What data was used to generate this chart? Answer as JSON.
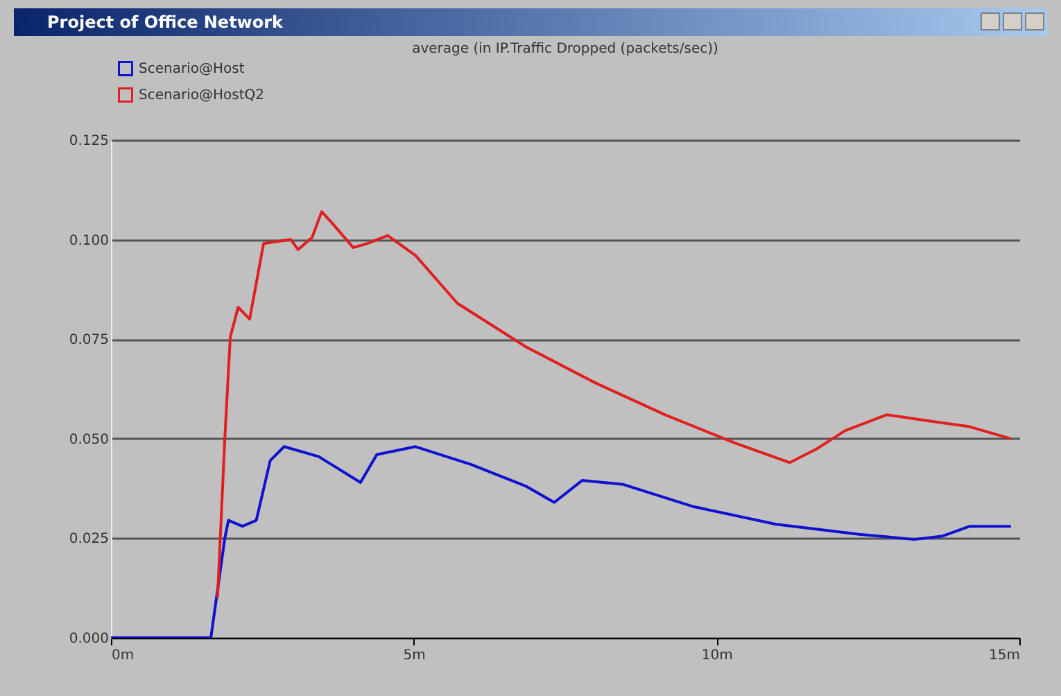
{
  "chart_data": {
    "type": "line",
    "title": "Project of Office Network",
    "subtitle": "average (in IP.Traffic Dropped (packets/sec))",
    "series": [
      {
        "name": "Scenario@Host",
        "color": "#1010d0",
        "x": [
          0,
          1.65,
          1.88,
          1.94,
          2.17,
          2.4,
          2.63,
          2.86,
          3.43,
          4.12,
          4.39,
          5.03,
          5.95,
          6.86,
          7.32,
          7.78,
          8.46,
          9.6,
          10.98,
          12.35,
          13.26,
          13.72,
          14.18,
          14.86
        ],
        "values": [
          0,
          0,
          0.025,
          0.0295,
          0.028,
          0.0295,
          0.0445,
          0.048,
          0.0455,
          0.039,
          0.046,
          0.048,
          0.0435,
          0.038,
          0.034,
          0.0395,
          0.0385,
          0.033,
          0.0285,
          0.026,
          0.0247,
          0.0255,
          0.028,
          0.028
        ]
      },
      {
        "name": "Scenario@HostQ2",
        "color": "#e02020",
        "x": [
          1.76,
          1.88,
          1.97,
          2.1,
          2.29,
          2.52,
          2.97,
          3.09,
          3.32,
          3.48,
          3.66,
          4.0,
          4.23,
          4.57,
          5.03,
          5.72,
          6.86,
          8.0,
          9.15,
          10.29,
          11.21,
          11.66,
          12.12,
          12.81,
          13.49,
          14.18,
          14.86
        ],
        "values": [
          0.01,
          0.05,
          0.0755,
          0.083,
          0.08,
          0.099,
          0.1,
          0.0975,
          0.1005,
          0.107,
          0.104,
          0.098,
          0.099,
          0.101,
          0.096,
          0.084,
          0.073,
          0.064,
          0.056,
          0.049,
          0.044,
          0.0475,
          0.052,
          0.056,
          0.0545,
          0.053,
          0.05
        ]
      }
    ],
    "xlim": [
      0,
      15
    ],
    "xticks": [
      {
        "value": 0,
        "label": "0m"
      },
      {
        "value": 5,
        "label": "5m"
      },
      {
        "value": 10,
        "label": "10m"
      },
      {
        "value": 15,
        "label": "15m"
      }
    ],
    "ylim": [
      0,
      0.125
    ],
    "yticks": [
      {
        "value": 0,
        "label": "0.000"
      },
      {
        "value": 0.025,
        "label": "0.025"
      },
      {
        "value": 0.05,
        "label": "0.050"
      },
      {
        "value": 0.075,
        "label": "0.075"
      },
      {
        "value": 0.1,
        "label": "0.100"
      },
      {
        "value": 0.125,
        "label": "0.125"
      }
    ],
    "grid": "y",
    "legend": "top left",
    "line_style": "solid",
    "marker": "none"
  }
}
